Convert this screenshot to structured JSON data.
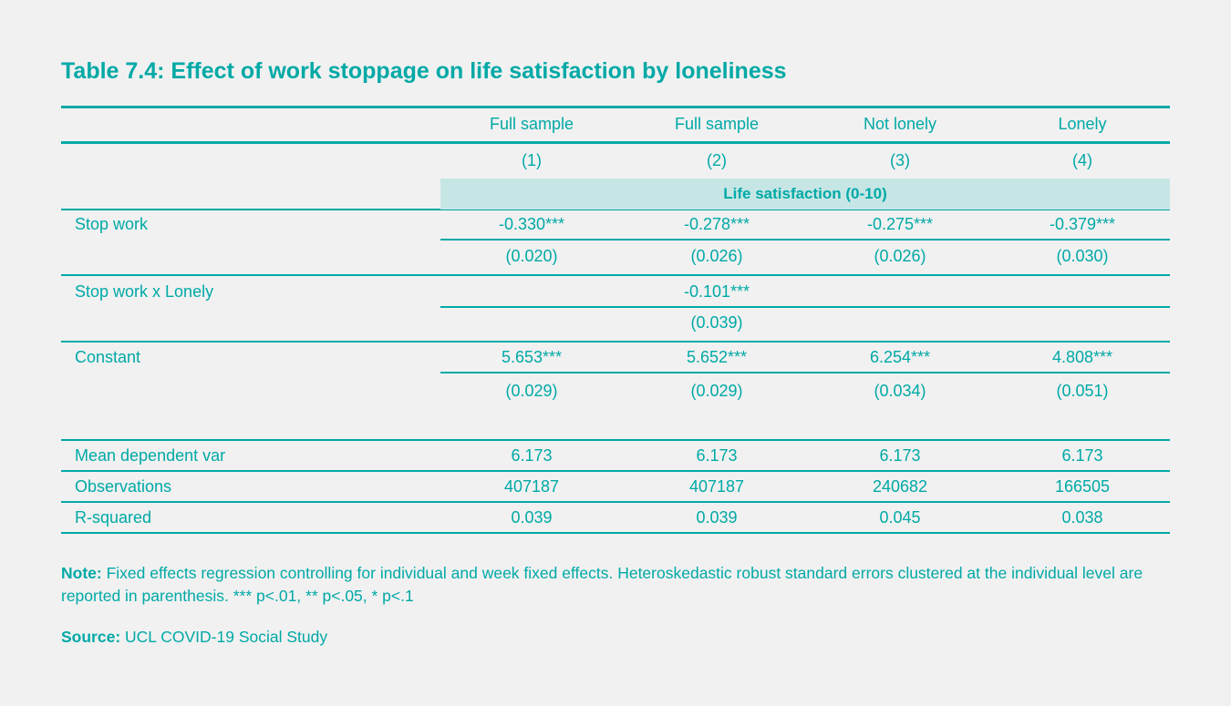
{
  "title": "Table 7.4: Effect of work stoppage on life satisfaction by loneliness",
  "columns": [
    "Full sample",
    "Full sample",
    "Not lonely",
    "Lonely"
  ],
  "column_numbers": [
    "(1)",
    "(2)",
    "(3)",
    "(4)"
  ],
  "dependent_variable": "Life satisfaction (0-10)",
  "rows": [
    {
      "label": "Stop work",
      "values": [
        "-0.330***",
        "-0.278***",
        "-0.275***",
        "-0.379***"
      ],
      "se": [
        "(0.020)",
        "(0.026)",
        "(0.026)",
        "(0.030)"
      ]
    },
    {
      "label": "Stop work x Lonely",
      "values": [
        "",
        "-0.101***",
        "",
        ""
      ],
      "se": [
        "",
        "(0.039)",
        "",
        ""
      ]
    },
    {
      "label": "Constant",
      "values": [
        "5.653***",
        "5.652***",
        "6.254***",
        "4.808***"
      ],
      "se": [
        "(0.029)",
        "(0.029)",
        "(0.034)",
        "(0.051)"
      ]
    }
  ],
  "stats": [
    {
      "label": "Mean dependent var",
      "values": [
        "6.173",
        "6.173",
        "6.173",
        "6.173"
      ]
    },
    {
      "label": "Observations",
      "values": [
        "407187",
        "407187",
        "240682",
        "166505"
      ]
    },
    {
      "label": "R-squared",
      "values": [
        "0.039",
        "0.039",
        "0.045",
        "0.038"
      ]
    }
  ],
  "note": {
    "label": "Note:",
    "text": " Fixed effects regression controlling for individual and week fixed effects. Heteroskedastic robust standard errors clustered at the individual level are reported in parenthesis. *** p<.01, ** p<.05, * p<.1"
  },
  "source": {
    "label": "Source:",
    "text": " UCL COVID-19 Social Study"
  },
  "colors": {
    "accent": "#00a9a6",
    "band": "#c6e6e5",
    "background": "#f1f1f1"
  }
}
